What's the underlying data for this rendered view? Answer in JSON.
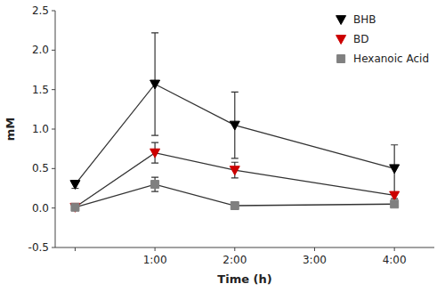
{
  "chart_data": {
    "type": "line",
    "x_label": "Time (h)",
    "y_label": "mM",
    "x": [
      0,
      1,
      2,
      4
    ],
    "series": [
      {
        "name": "BHB",
        "color": "#000000",
        "marker": "triangle-down",
        "values": [
          0.3,
          1.57,
          1.05,
          0.5
        ],
        "errors": [
          0.05,
          0.65,
          0.42,
          0.3
        ]
      },
      {
        "name": "BD",
        "color": "#cc0000",
        "marker": "triangle-down",
        "values": [
          0.01,
          0.7,
          0.48,
          0.16
        ],
        "errors": [
          0.01,
          0.13,
          0.1,
          0.04
        ]
      },
      {
        "name": "Hexanoic Acid",
        "color": "#808080",
        "marker": "square",
        "values": [
          0.01,
          0.3,
          0.03,
          0.05
        ],
        "errors": [
          0.01,
          0.09,
          0.02,
          0.02
        ]
      }
    ],
    "xlim": [
      -0.25,
      4.5
    ],
    "xticks": [
      {
        "value": 0,
        "label": null
      },
      {
        "value": 1,
        "label": "1:00"
      },
      {
        "value": 2,
        "label": "2:00"
      },
      {
        "value": 3,
        "label": "3:00"
      },
      {
        "value": 4,
        "label": "4:00"
      }
    ],
    "ylim": [
      -0.5,
      2.5
    ],
    "yticks": [
      -0.5,
      {
        "value": 0,
        "label": "0.0"
      },
      0.5,
      {
        "value": 1,
        "label": "1.0"
      },
      1.5,
      {
        "value": 2,
        "label": "2.0"
      },
      2.5
    ],
    "grid": false,
    "legend": "upper-right"
  }
}
